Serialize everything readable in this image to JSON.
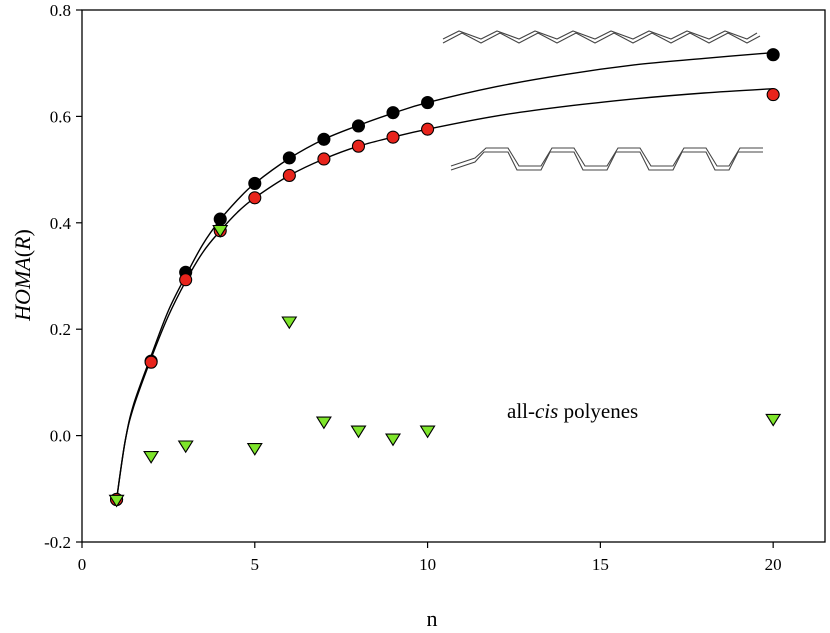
{
  "chart_data": {
    "type": "scatter",
    "xlabel": "n",
    "ylabel_main": "HOMA",
    "ylabel_paren_open": "(",
    "ylabel_var": "R",
    "ylabel_paren_close": ")",
    "xlim": [
      0,
      21.5
    ],
    "ylim": [
      -0.2,
      0.8
    ],
    "x_ticks": [
      0,
      5,
      10,
      15,
      20
    ],
    "x_tick_labels": [
      "0",
      "5",
      "10",
      "15",
      "20"
    ],
    "y_ticks": [
      -0.2,
      0.0,
      0.2,
      0.4,
      0.6,
      0.8
    ],
    "y_tick_labels": [
      "-0.2",
      "0.0",
      "0.2",
      "0.4",
      "0.6",
      "0.8"
    ],
    "grid": false,
    "annotation": {
      "prefix": "all-",
      "italic": "cis",
      "suffix": " polyenes"
    },
    "series": [
      {
        "marker": "circle",
        "color": "#000000",
        "x": [
          1,
          2,
          3,
          4,
          5,
          6,
          7,
          8,
          9,
          10,
          20
        ],
        "y": [
          -0.12,
          0.14,
          0.307,
          0.407,
          0.474,
          0.522,
          0.557,
          0.582,
          0.607,
          0.626,
          0.716
        ]
      },
      {
        "marker": "circle",
        "color": "#e8241c",
        "x": [
          1,
          2,
          3,
          4,
          5,
          6,
          7,
          8,
          9,
          10,
          20
        ],
        "y": [
          -0.12,
          0.138,
          0.293,
          0.385,
          0.447,
          0.489,
          0.52,
          0.544,
          0.561,
          0.576,
          0.641
        ]
      },
      {
        "marker": "triangle-down",
        "color": "#7ee52b",
        "x": [
          1,
          2,
          3,
          4,
          5,
          6,
          7,
          8,
          9,
          10,
          20
        ],
        "y": [
          -0.122,
          -0.04,
          -0.02,
          0.385,
          -0.025,
          0.213,
          0.025,
          0.008,
          -0.007,
          0.008,
          0.03
        ]
      }
    ],
    "fit_curves": [
      {
        "x": [
          1,
          1.25,
          1.5,
          2,
          2.5,
          3,
          3.5,
          4,
          4.5,
          5,
          6,
          7,
          8,
          9,
          10,
          12,
          14,
          16,
          18,
          20
        ],
        "y": [
          -0.12,
          -0.01,
          0.06,
          0.15,
          0.235,
          0.3,
          0.36,
          0.406,
          0.443,
          0.474,
          0.521,
          0.557,
          0.583,
          0.606,
          0.626,
          0.656,
          0.679,
          0.697,
          0.709,
          0.72
        ]
      },
      {
        "x": [
          1,
          1.25,
          1.5,
          2,
          2.5,
          3,
          3.5,
          4,
          4.5,
          5,
          6,
          7,
          8,
          9,
          10,
          12,
          14,
          16,
          18,
          20
        ],
        "y": [
          -0.12,
          -0.01,
          0.055,
          0.145,
          0.225,
          0.29,
          0.345,
          0.385,
          0.42,
          0.447,
          0.489,
          0.52,
          0.544,
          0.561,
          0.576,
          0.601,
          0.619,
          0.633,
          0.644,
          0.652
        ]
      }
    ]
  },
  "colors": {
    "black_series": "#000000",
    "red_series": "#e8241c",
    "green_series": "#7ee52b"
  }
}
